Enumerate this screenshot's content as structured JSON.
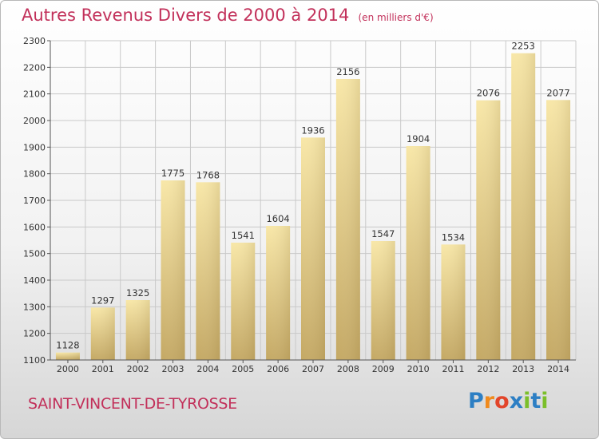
{
  "header": {
    "title": "Autres Revenus Divers de 2000 à 2014",
    "unit": "(en milliers d'€)"
  },
  "footer": {
    "commune": "SAINT-VINCENT-DE-TYROSSE",
    "brand_letters": [
      "P",
      "r",
      "o",
      "x",
      "i",
      "t",
      "i"
    ]
  },
  "colors": {
    "title": "#c2305a",
    "bar_light": "#f8e7a7",
    "bar_dark": "#c4a863",
    "grid": "#c9c9c9",
    "text": "#333333"
  },
  "chart_data": {
    "type": "bar",
    "title": "Autres Revenus Divers de 2000 à 2014",
    "xlabel": "",
    "ylabel": "",
    "ylim": [
      1100,
      2300
    ],
    "yticks": [
      1100,
      1200,
      1300,
      1400,
      1500,
      1600,
      1700,
      1800,
      1900,
      2000,
      2100,
      2200,
      2300
    ],
    "grid": true,
    "categories": [
      "2000",
      "2001",
      "2002",
      "2003",
      "2004",
      "2005",
      "2006",
      "2007",
      "2008",
      "2009",
      "2010",
      "2011",
      "2012",
      "2013",
      "2014"
    ],
    "values": [
      1128,
      1297,
      1325,
      1775,
      1768,
      1541,
      1604,
      1936,
      2156,
      1547,
      1904,
      1534,
      2076,
      2253,
      2077
    ]
  }
}
